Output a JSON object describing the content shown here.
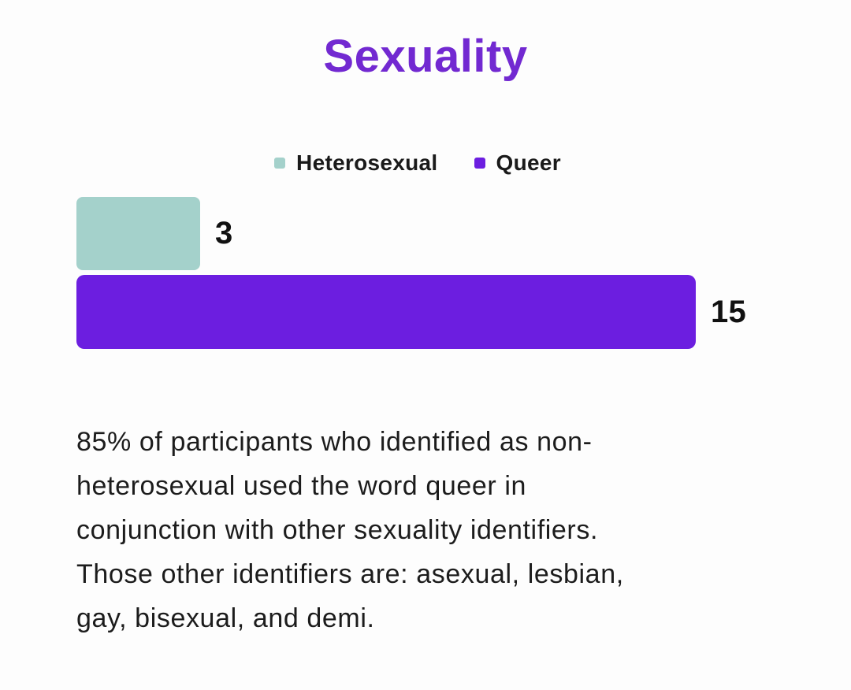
{
  "page": {
    "title": "Sexuality",
    "background_color": "#fdfdfd"
  },
  "theme": {
    "title_color": "#7229d1",
    "text_color": "#1c1c1c",
    "heterosexual_color": "#a4d1cb",
    "queer_color": "#6c1ee0"
  },
  "chart_data": {
    "type": "bar",
    "orientation": "horizontal",
    "title": "Sexuality",
    "categories": [
      "Heterosexual",
      "Queer"
    ],
    "values": [
      3,
      15
    ],
    "series": [
      {
        "name": "Heterosexual",
        "value": 3,
        "color": "#a4d1cb"
      },
      {
        "name": "Queer",
        "value": 15,
        "color": "#6c1ee0"
      }
    ],
    "value_labels": [
      "3",
      "15"
    ],
    "legend_position": "top",
    "grid": false,
    "axes_visible": false
  },
  "description": {
    "lines": [
      "85% of participants who identified as non-",
      "heterosexual used the word queer in",
      "conjunction with other sexuality identifiers.",
      "Those other identifiers are: asexual, lesbian,",
      "gay, bisexual, and demi."
    ],
    "full_text": "85% of participants who identified as non-heterosexual used the word queer in conjunction with other sexuality identifiers. Those other identifiers are: asexual, lesbian, gay, bisexual, and demi."
  }
}
